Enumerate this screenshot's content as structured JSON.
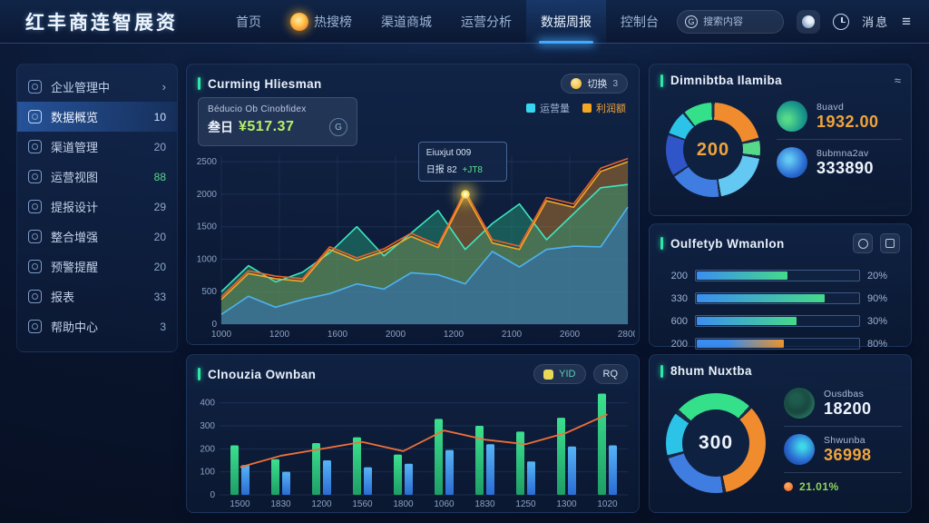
{
  "navbar": {
    "logo": "红丰商连智展资",
    "items": [
      {
        "label": "首页",
        "flame": false,
        "active": false
      },
      {
        "label": "热搜榜",
        "flame": true,
        "active": false
      },
      {
        "label": "渠道商城",
        "flame": false,
        "active": false
      },
      {
        "label": "运营分析",
        "flame": false,
        "active": false
      },
      {
        "label": "数据周报",
        "flame": false,
        "active": true
      },
      {
        "label": "控制台",
        "flame": false,
        "active": false
      }
    ],
    "search_placeholder": "搜索内容",
    "lang_label": "消息"
  },
  "sidebar": {
    "items": [
      {
        "label": "企业管理中",
        "count": "",
        "chevron": true,
        "active": false,
        "count_color": ""
      },
      {
        "label": "数据概览",
        "count": "10",
        "chevron": false,
        "active": true,
        "count_color": "#cfe4ff"
      },
      {
        "label": "渠道管理",
        "count": "20",
        "chevron": false,
        "active": false,
        "count_color": ""
      },
      {
        "label": "运营视图",
        "count": "88",
        "chevron": false,
        "active": false,
        "count_color": "#57d98a"
      },
      {
        "label": "提报设计",
        "count": "29",
        "chevron": false,
        "active": false,
        "count_color": ""
      },
      {
        "label": "整合增强",
        "count": "20",
        "chevron": false,
        "active": false,
        "count_color": ""
      },
      {
        "label": "预警提醒",
        "count": "20",
        "chevron": false,
        "active": false,
        "count_color": ""
      },
      {
        "label": "报表",
        "count": "33",
        "chevron": false,
        "active": false,
        "count_color": ""
      },
      {
        "label": "帮助中心",
        "count": "3",
        "chevron": false,
        "active": false,
        "count_color": ""
      }
    ]
  },
  "revenue_card": {
    "title": "Curming Hliesman",
    "action_label": "切换",
    "action_badge": "3",
    "legend": [
      {
        "label": "运营量",
        "color": "#38d6f0",
        "label_color": "#9db4d6"
      },
      {
        "label": "利润额",
        "color": "#f5a623",
        "label_color": "#f0a43c"
      }
    ],
    "overlay": {
      "label": "Béducio Ob Cinobfidex",
      "prefix": "叁日",
      "value": "¥517.37",
      "badge": "G"
    },
    "tooltip": {
      "title": "Eiuxjut 009",
      "label": "日报",
      "value": "82",
      "delta": "+JT8"
    },
    "chart_data": {
      "type": "area",
      "x_ticks": [
        "1000",
        "1200",
        "1600",
        "2000",
        "1200",
        "2100",
        "2600",
        "2800"
      ],
      "y_ticks": [
        "2500",
        "2000",
        "1500",
        "1000",
        "500",
        "0"
      ],
      "ylim": [
        0,
        2600
      ],
      "tooltip_index": 9,
      "tooltip_series": 2,
      "series": [
        {
          "name": "blue-area",
          "color": "#4db3f0",
          "fill": "rgba(45,110,200,0.50)",
          "values": [
            150,
            430,
            260,
            380,
            470,
            620,
            540,
            790,
            760,
            620,
            1120,
            880,
            1150,
            1200,
            1190,
            1800
          ]
        },
        {
          "name": "teal-area",
          "color": "#3ee6c0",
          "fill": "rgba(40,165,125,0.45)",
          "values": [
            500,
            900,
            650,
            800,
            1100,
            1500,
            1050,
            1400,
            1750,
            1150,
            1550,
            1850,
            1300,
            1700,
            2100,
            2150
          ]
        },
        {
          "name": "orange-area",
          "color": "#f5a623",
          "fill": "rgba(230,145,40,0.40)",
          "values": [
            380,
            780,
            700,
            660,
            1150,
            980,
            1120,
            1350,
            1180,
            2000,
            1250,
            1150,
            1900,
            1800,
            2350,
            2500
          ]
        },
        {
          "name": "red-line",
          "color": "#e8622d",
          "fill": "none",
          "values": [
            420,
            820,
            740,
            700,
            1190,
            1020,
            1160,
            1400,
            1220,
            2050,
            1300,
            1200,
            1950,
            1850,
            2400,
            2550
          ]
        }
      ]
    }
  },
  "output_card": {
    "title": "Clnouzia Ownban",
    "button_primary": "YID",
    "button_secondary": "RQ",
    "chart_data": {
      "type": "bar-line",
      "categories": [
        "1500",
        "1830",
        "1200",
        "1560",
        "1800",
        "1060",
        "1830",
        "1250",
        "1300",
        "1020"
      ],
      "y_ticks": [
        "400",
        "300",
        "200",
        "100",
        "0"
      ],
      "ylim": [
        0,
        450
      ],
      "series": [
        {
          "name": "green-bars",
          "color_top": "#3ce08f",
          "color_bottom": "#1e9e66",
          "values": [
            215,
            155,
            225,
            250,
            175,
            330,
            300,
            275,
            335,
            440
          ]
        },
        {
          "name": "blue-bars",
          "color_top": "#56b4f5",
          "color_bottom": "#2b6cd4",
          "values": [
            130,
            100,
            150,
            120,
            135,
            195,
            220,
            145,
            210,
            215
          ]
        }
      ],
      "line": {
        "name": "trend-line",
        "color": "#f0703a",
        "values": [
          120,
          170,
          200,
          230,
          190,
          280,
          240,
          220,
          270,
          350
        ]
      }
    }
  },
  "number_card": {
    "title": "Dimnibtba Ilamiba",
    "header_icon": "≈",
    "center_value": "200",
    "center_color": "#f0a43c",
    "donut": {
      "rotation": 0,
      "base": "rgba(255,255,255,0.06)",
      "segments": [
        {
          "color": "#f08c2e",
          "from": 2,
          "to": 75
        },
        {
          "color": "#57d98a",
          "from": 79,
          "to": 97
        },
        {
          "color": "#63c8f2",
          "from": 101,
          "to": 170
        },
        {
          "color": "#3f7de0",
          "from": 173,
          "to": 235
        },
        {
          "color": "#2f55c8",
          "from": 238,
          "to": 288
        },
        {
          "color": "#2bc4e8",
          "from": 291,
          "to": 320
        },
        {
          "color": "#35e08a",
          "from": 323,
          "to": 358
        }
      ]
    },
    "stats": [
      {
        "label": "8uavd",
        "value": "1932.00",
        "color": "#f0a43c",
        "icon": "leaf"
      },
      {
        "label": "8ubmna2av",
        "value": "333890",
        "color": "#eef4fc",
        "icon": "bag"
      }
    ]
  },
  "variation_card": {
    "title": "Oulfetyb Wmanlon",
    "rows": [
      {
        "label": "200",
        "pct": 56,
        "value": "20%",
        "gradient": "blue-green"
      },
      {
        "label": "330",
        "pct": 79,
        "value": "90%",
        "gradient": "blue-green"
      },
      {
        "label": "600",
        "pct": 62,
        "value": "30%",
        "gradient": "blue-green"
      },
      {
        "label": "200",
        "pct": 54,
        "value": "80%",
        "gradient": "blue-orange"
      }
    ]
  },
  "total_card": {
    "title": "8hum Nuxtba",
    "center_value": "300",
    "center_color": "#eef4fc",
    "donut": {
      "rotation": -48,
      "base": "rgba(255,255,255,0.06)",
      "segments": [
        {
          "color": "#35e08a",
          "from": 0,
          "to": 90
        },
        {
          "color": "#f08c2e",
          "from": 94,
          "to": 216
        },
        {
          "color": "#3f7de0",
          "from": 220,
          "to": 300
        },
        {
          "color": "#2bc4e8",
          "from": 304,
          "to": 354
        }
      ]
    },
    "stats": [
      {
        "label": "Ousdbas",
        "value": "18200",
        "color": "#eef4fc",
        "icon": "head"
      },
      {
        "label": "Shwunba",
        "value": "36998",
        "color": "#f0a43c",
        "icon": "swirl"
      }
    ],
    "trend": {
      "text": "21.01%",
      "color": "#8fd45a"
    }
  }
}
